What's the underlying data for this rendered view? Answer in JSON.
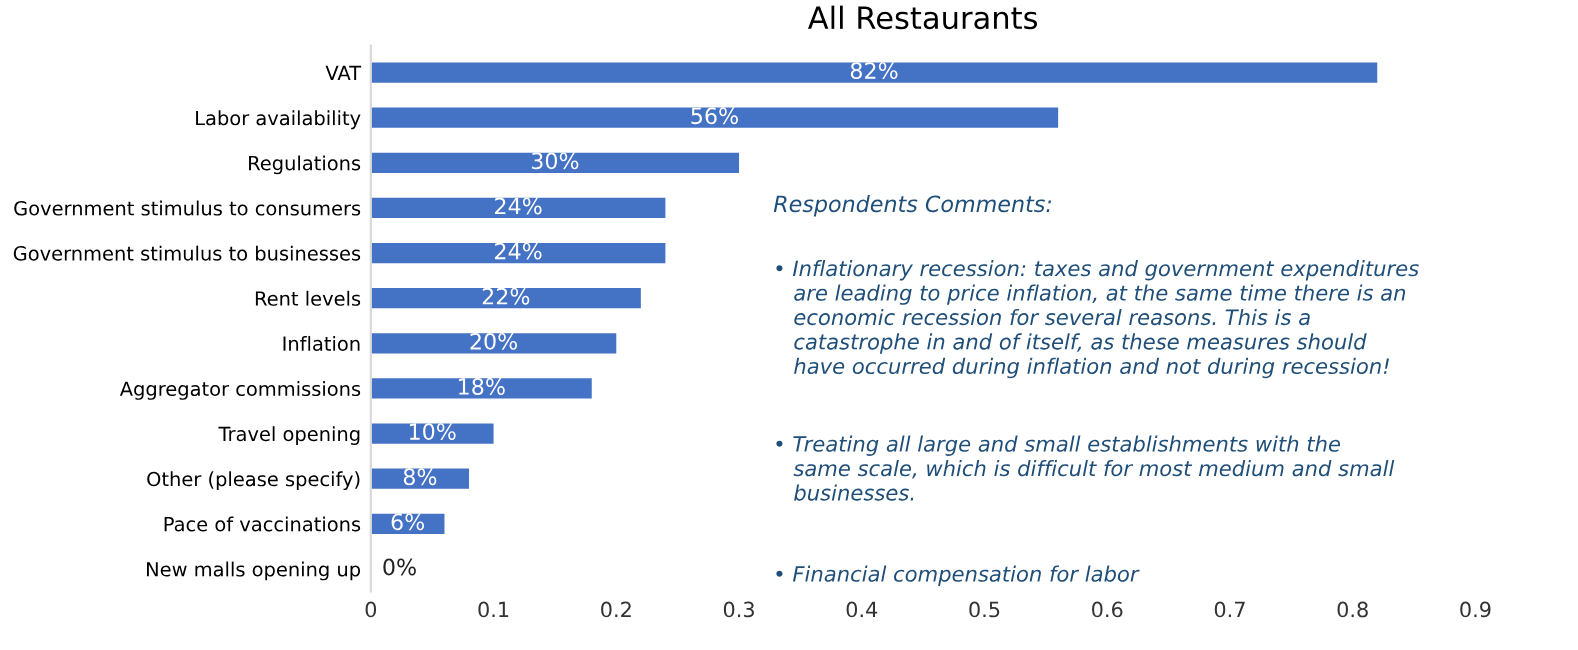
{
  "chart_data": {
    "type": "bar",
    "orientation": "horizontal",
    "title": "All Restaurants",
    "categories": [
      "VAT",
      "Labor availability",
      "Regulations",
      "Government stimulus to consumers",
      "Government stimulus to businesses",
      "Rent levels",
      "Inflation",
      "Aggregator commissions",
      "Travel opening",
      "Other (please specify)",
      "Pace of vaccinations",
      "New malls opening up"
    ],
    "values": [
      0.82,
      0.56,
      0.3,
      0.24,
      0.24,
      0.22,
      0.2,
      0.18,
      0.1,
      0.08,
      0.06,
      0
    ],
    "value_labels": [
      "82%",
      "56%",
      "30%",
      "24%",
      "24%",
      "22%",
      "20%",
      "18%",
      "10%",
      "8%",
      "6%",
      "0%"
    ],
    "color": "#4472c4",
    "xlim": [
      0,
      0.9
    ],
    "xticks": [
      0,
      0.1,
      0.2,
      0.3,
      0.4,
      0.5,
      0.6,
      0.7,
      0.8,
      0.9
    ],
    "grid": false,
    "legend": false,
    "annotations": [
      "Respondents Comments:",
      "• Inflationary recession: taxes and government expenditures\n   are leading to price inflation, at the same time there is an\n   economic recession for several reasons. This is a\n   catastrophe in and of itself, as these measures should\n   have occurred during inflation and not during recession!",
      "• Treating all large and small establishments with the\n   same scale, which is difficult for most medium and small\n   businesses.",
      "• Financial compensation for labor"
    ]
  }
}
